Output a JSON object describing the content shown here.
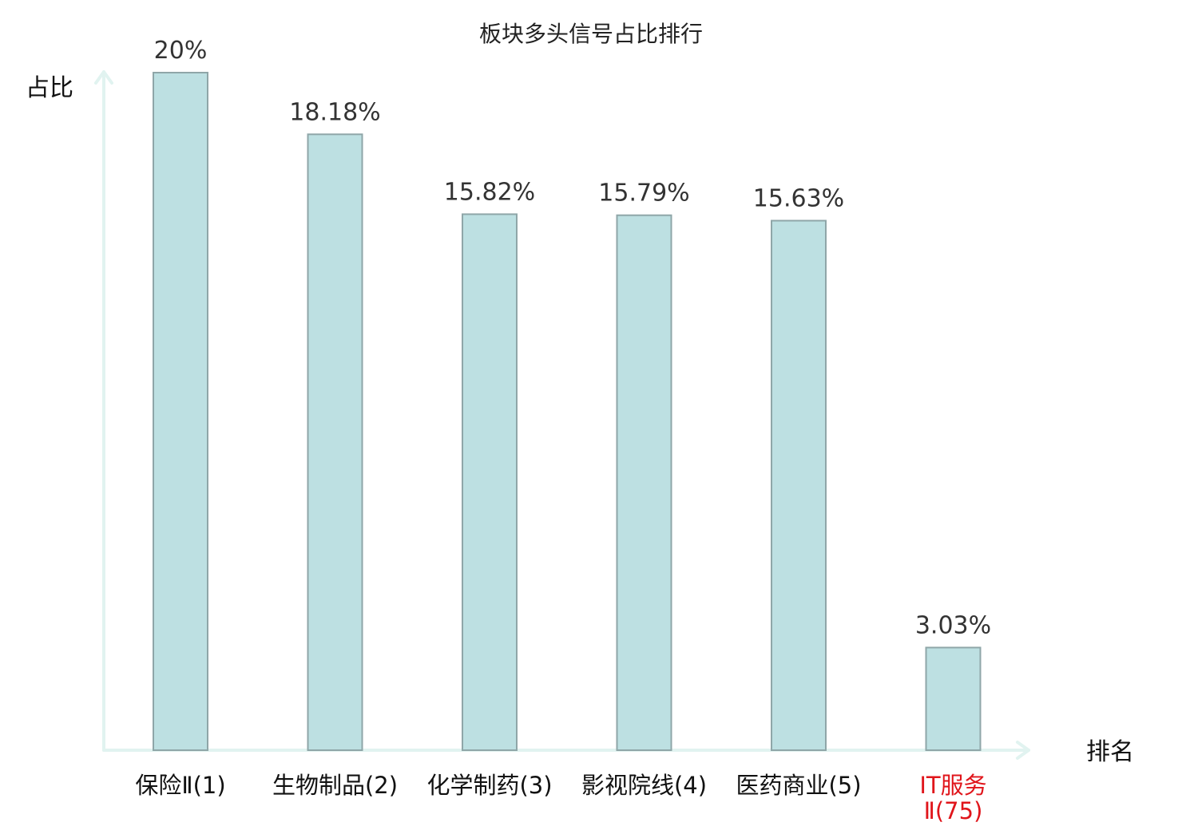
{
  "chart_data": {
    "type": "bar",
    "title": "板块多头信号占比排行",
    "ylabel": "占比",
    "xlabel": "排名",
    "categories": [
      [
        "保险Ⅱ(1)"
      ],
      [
        "生物制品(2)"
      ],
      [
        "化学制药(3)"
      ],
      [
        "影视院线(4)"
      ],
      [
        "医药商业(5)"
      ],
      [
        "IT服务",
        "Ⅱ(75)"
      ]
    ],
    "values": [
      20,
      18.18,
      15.82,
      15.79,
      15.63,
      3.03
    ],
    "value_labels": [
      "20%",
      "18.18%",
      "15.82%",
      "15.79%",
      "15.63%",
      "3.03%"
    ],
    "highlight_index": 5,
    "ylim": [
      0,
      20
    ],
    "grid": false,
    "legend": "none",
    "colors": {
      "bar_fill": "#bde0e2",
      "bar_stroke": "#8fa6a8",
      "axis": "#e1f3f0",
      "highlight_text": "#e0151b",
      "value_text": "#333333"
    }
  }
}
